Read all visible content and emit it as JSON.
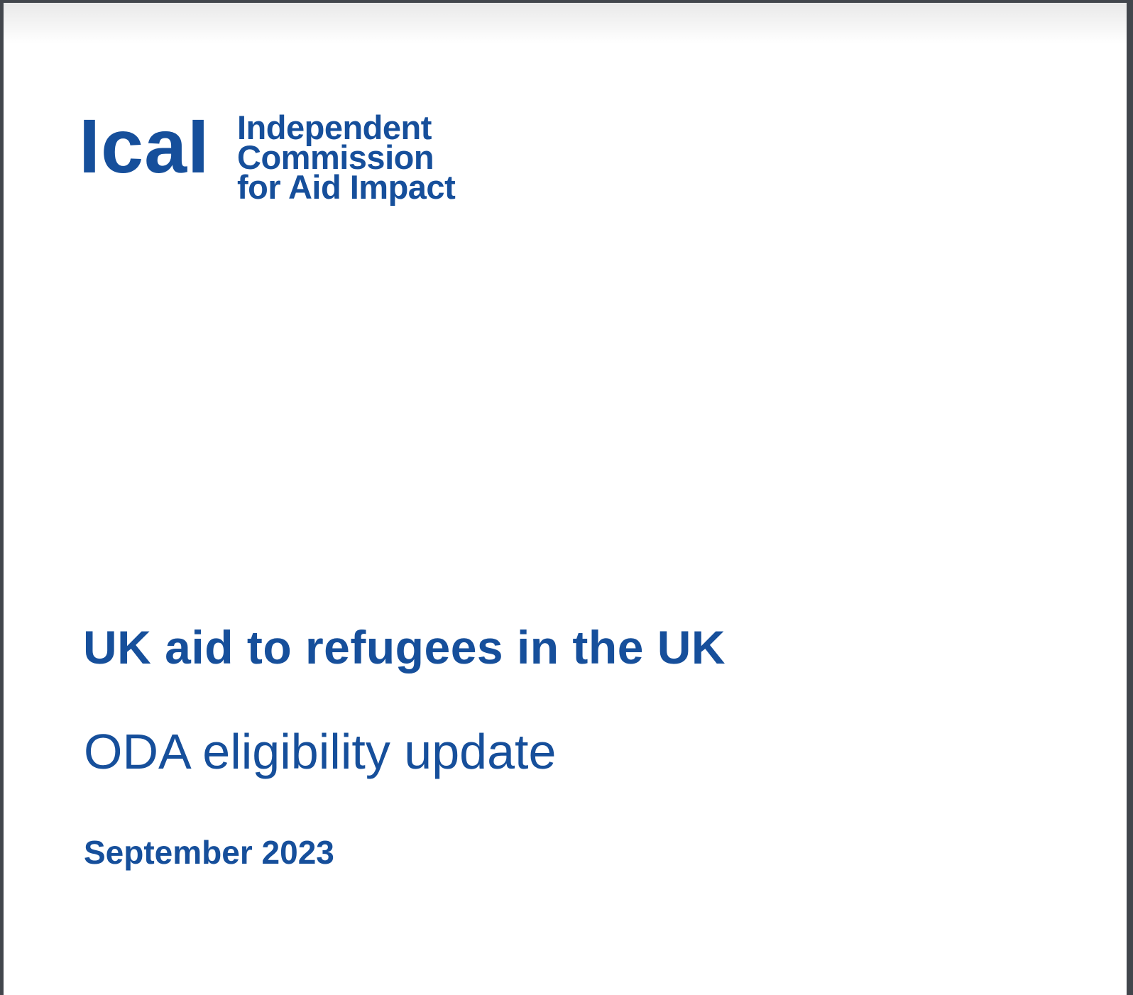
{
  "colors": {
    "brand_blue": "#164f9b",
    "frame_dark": "#42464c",
    "page_bg": "#ffffff"
  },
  "logo": {
    "wordmark_text": "IcaI",
    "org_lines": [
      "Independent",
      "Commission",
      "for Aid Impact"
    ]
  },
  "cover": {
    "title": "UK aid to refugees in the UK",
    "subtitle": "ODA eligibility update",
    "date": "September 2023"
  }
}
